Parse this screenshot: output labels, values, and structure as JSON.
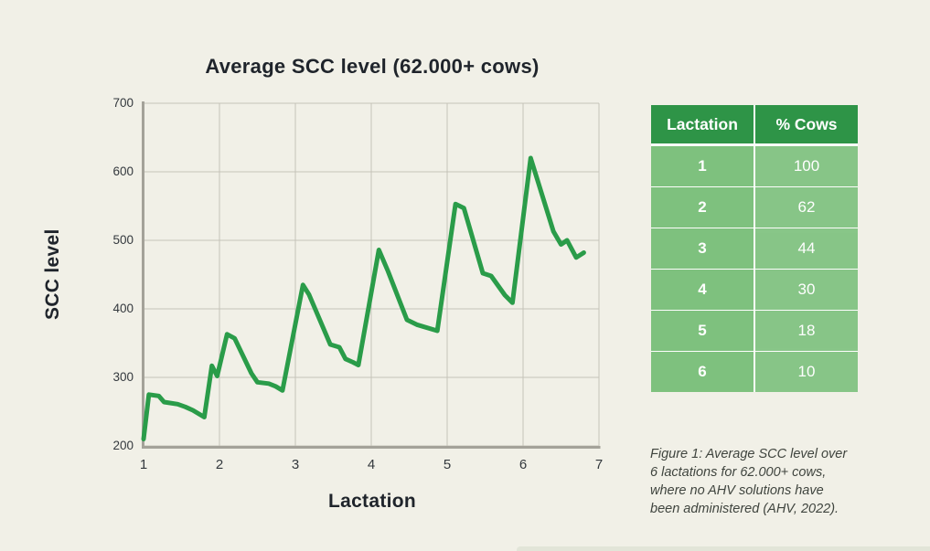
{
  "page": {
    "background": "#f1f0e7"
  },
  "chart_data": {
    "type": "line",
    "title": "Average SCC level (62.000+ cows)",
    "xlabel": "Lactation",
    "ylabel": "SCC level",
    "xlim": [
      1,
      7
    ],
    "ylim": [
      200,
      700
    ],
    "xticks": [
      1,
      2,
      3,
      4,
      5,
      6,
      7
    ],
    "yticks": [
      200,
      300,
      400,
      500,
      600,
      700
    ],
    "grid": true,
    "legend": "none",
    "line_color": "#2a9c49",
    "series": [
      {
        "name": "Average SCC level",
        "x": [
          1.0,
          1.07,
          1.2,
          1.27,
          1.45,
          1.55,
          1.65,
          1.8,
          1.9,
          1.97,
          2.1,
          2.2,
          2.42,
          2.5,
          2.65,
          2.74,
          2.83,
          3.1,
          3.18,
          3.46,
          3.58,
          3.66,
          3.76,
          3.83,
          4.1,
          4.22,
          4.47,
          4.6,
          4.87,
          5.11,
          5.22,
          5.47,
          5.58,
          5.76,
          5.86,
          6.1,
          6.4,
          6.5,
          6.58,
          6.7,
          6.8
        ],
        "y": [
          210,
          275,
          273,
          264,
          261,
          257,
          252,
          242,
          317,
          302,
          363,
          357,
          306,
          293,
          291,
          287,
          281,
          435,
          421,
          348,
          344,
          327,
          322,
          318,
          486,
          455,
          384,
          377,
          368,
          553,
          547,
          452,
          448,
          420,
          409,
          620,
          513,
          494,
          500,
          475,
          482
        ]
      }
    ]
  },
  "table": {
    "headers": [
      "Lactation",
      "% Cows"
    ],
    "rows": [
      {
        "lactation": "1",
        "pct_cows": "100"
      },
      {
        "lactation": "2",
        "pct_cows": "62"
      },
      {
        "lactation": "3",
        "pct_cows": "44"
      },
      {
        "lactation": "4",
        "pct_cows": "30"
      },
      {
        "lactation": "5",
        "pct_cows": "18"
      },
      {
        "lactation": "6",
        "pct_cows": "10"
      }
    ]
  },
  "caption": {
    "lines": [
      "Figure 1: Average SCC level over",
      "6 lactations for 62.000+ cows,",
      "where no AHV solutions have",
      "been administered (AHV, 2022)."
    ]
  },
  "colors": {
    "background": "#f1f0e7",
    "line": "#2a9c49",
    "grid": "#c5c3b9",
    "axis_spine": "#a4a299",
    "dark_text": "#1f242b",
    "tick_text": "#33383d",
    "table_header_bg": "#2e9447",
    "table_row_bg": "#7ec17e",
    "table_text": "#ffffff",
    "caption_text": "#3f443e"
  }
}
